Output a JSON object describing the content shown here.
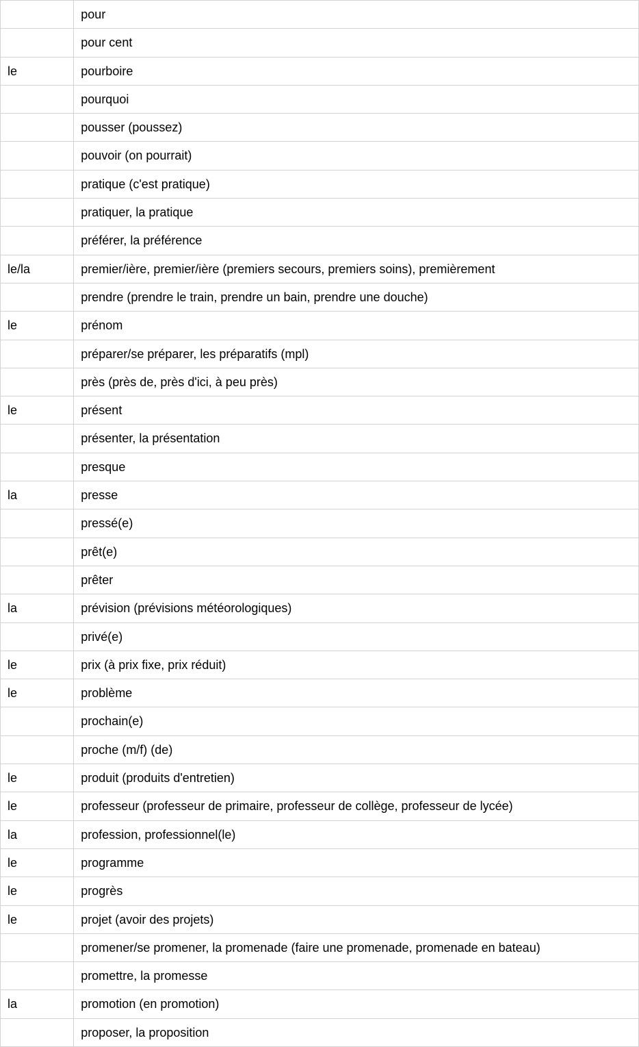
{
  "table": {
    "columns": [
      "article",
      "word"
    ],
    "column_widths": [
      "11.5%",
      "88.5%"
    ],
    "border_color": "#d3d3d3",
    "font_size": 18,
    "text_color": "#000000",
    "background_color": "#ffffff",
    "cell_padding": "8px 10px",
    "rows": [
      {
        "article": "",
        "word": "pour"
      },
      {
        "article": "",
        "word": "pour cent"
      },
      {
        "article": "le",
        "word": "pourboire"
      },
      {
        "article": "",
        "word": "pourquoi"
      },
      {
        "article": "",
        "word": "pousser (poussez)"
      },
      {
        "article": "",
        "word": "pouvoir (on pourrait)"
      },
      {
        "article": "",
        "word": "pratique (c'est pratique)"
      },
      {
        "article": "",
        "word": "pratiquer, la pratique"
      },
      {
        "article": "",
        "word": "préférer, la préférence"
      },
      {
        "article": "le/la",
        "word": "premier/ière, premier/ière (premiers secours, premiers soins), premièrement"
      },
      {
        "article": "",
        "word": "prendre (prendre le train, prendre un bain, prendre une douche)"
      },
      {
        "article": "le",
        "word": "prénom"
      },
      {
        "article": "",
        "word": "préparer/se préparer, les préparatifs (mpl)"
      },
      {
        "article": "",
        "word": "près (près de, près d'ici, à peu près)"
      },
      {
        "article": "le",
        "word": "présent"
      },
      {
        "article": "",
        "word": "présenter, la présentation"
      },
      {
        "article": "",
        "word": "presque"
      },
      {
        "article": "la",
        "word": "presse"
      },
      {
        "article": "",
        "word": "pressé(e)"
      },
      {
        "article": "",
        "word": "prêt(e)"
      },
      {
        "article": "",
        "word": "prêter"
      },
      {
        "article": "la",
        "word": "prévision (prévisions météorologiques)"
      },
      {
        "article": "",
        "word": "privé(e)"
      },
      {
        "article": "le",
        "word": "prix (à prix fixe, prix réduit)"
      },
      {
        "article": "le",
        "word": "problème"
      },
      {
        "article": "",
        "word": "prochain(e)"
      },
      {
        "article": "",
        "word": "proche (m/f) (de)"
      },
      {
        "article": "le",
        "word": "produit (produits d'entretien)"
      },
      {
        "article": "le",
        "word": "professeur (professeur de primaire, professeur de collège, professeur de lycée)"
      },
      {
        "article": "la",
        "word": "profession, professionnel(le)"
      },
      {
        "article": "le",
        "word": "programme"
      },
      {
        "article": "le",
        "word": "progrès"
      },
      {
        "article": "le",
        "word": "projet (avoir des projets)"
      },
      {
        "article": "",
        "word": "promener/se promener, la promenade (faire une promenade, promenade en bateau)"
      },
      {
        "article": "",
        "word": "promettre, la promesse"
      },
      {
        "article": "la",
        "word": "promotion (en promotion)"
      },
      {
        "article": "",
        "word": "proposer, la proposition"
      }
    ]
  }
}
